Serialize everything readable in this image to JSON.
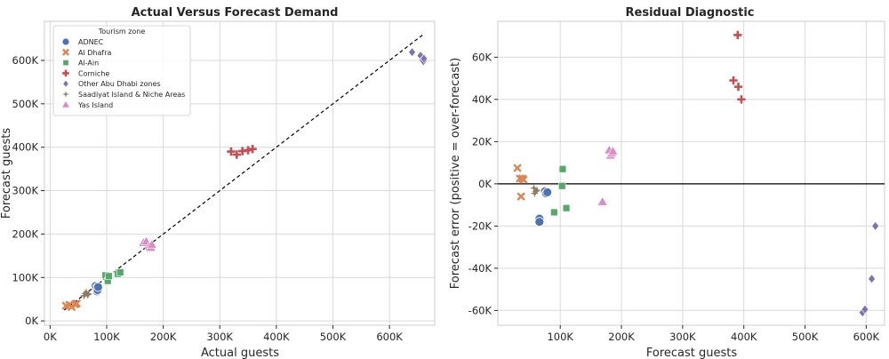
{
  "chart_data": [
    {
      "type": "scatter",
      "title": "Actual Versus Forecast Demand",
      "xlabel": "Actual guests",
      "ylabel": "Forecast guests",
      "xlim": [
        -10000,
        680000
      ],
      "ylim": [
        -10000,
        690000
      ],
      "xticks": [
        0,
        100000,
        200000,
        300000,
        400000,
        500000,
        600000
      ],
      "xtick_labels": [
        "0K",
        "100K",
        "200K",
        "300K",
        "400K",
        "500K",
        "600K"
      ],
      "yticks": [
        0,
        100000,
        200000,
        300000,
        400000,
        500000,
        600000
      ],
      "ytick_labels": [
        "0K",
        "100K",
        "200K",
        "300K",
        "400K",
        "500K",
        "600K"
      ],
      "grid": true,
      "reference_line": {
        "style": "dashed",
        "from": [
          25000,
          25000
        ],
        "to": [
          660000,
          660000
        ]
      },
      "legend": {
        "title": "Tourism zone",
        "placement": "top-left",
        "entries": [
          "ADNEC",
          "Al Dhafra",
          "Al-Ain",
          "Corniche",
          "Other Abu Dhabi zones",
          "Saadiyat Island & Niche Areas",
          "Yas Island"
        ]
      },
      "series": [
        {
          "name": "ADNEC",
          "color": "#4c72b0",
          "marker": "circle",
          "points": [
            [
              80000,
              80000
            ],
            [
              82000,
              76000
            ],
            [
              83000,
              68000
            ],
            [
              84000,
              71000
            ],
            [
              85000,
              78000
            ]
          ]
        },
        {
          "name": "Al Dhafra",
          "color": "#dd8452",
          "marker": "x",
          "points": [
            [
              28000,
              35000
            ],
            [
              34000,
              37000
            ],
            [
              38000,
              32000
            ],
            [
              44000,
              38000
            ],
            [
              47000,
              40000
            ]
          ]
        },
        {
          "name": "Al-Ain",
          "color": "#55a868",
          "marker": "square",
          "points": [
            [
              98000,
              105000
            ],
            [
              102000,
              92000
            ],
            [
              104000,
              103000
            ],
            [
              120000,
              108000
            ],
            [
              124000,
              112000
            ]
          ]
        },
        {
          "name": "Corniche",
          "color": "#c44e52",
          "marker": "plus",
          "points": [
            [
              320000,
              390000
            ],
            [
              330000,
              383000
            ],
            [
              340000,
              391000
            ],
            [
              350000,
              393000
            ],
            [
              358000,
              396000
            ]
          ]
        },
        {
          "name": "Other Abu Dhabi zones",
          "color": "#8172b3",
          "marker": "diamond",
          "points": [
            [
              640000,
              619000
            ],
            [
              655000,
              611000
            ],
            [
              658000,
              600000
            ],
            [
              660000,
              598000
            ],
            [
              661000,
              604000
            ]
          ]
        },
        {
          "name": "Saadiyat Island & Niche Areas",
          "color": "#937860",
          "marker": "star",
          "points": [
            [
              60000,
              58000
            ],
            [
              62000,
              63000
            ],
            [
              64000,
              66000
            ],
            [
              66000,
              60000
            ],
            [
              68000,
              62000
            ]
          ]
        },
        {
          "name": "Yas Island",
          "color": "#da8bc3",
          "marker": "triangle",
          "points": [
            [
              165000,
              180000
            ],
            [
              170000,
              183000
            ],
            [
              175000,
              172000
            ],
            [
              178000,
              169000
            ],
            [
              180000,
              176000
            ]
          ]
        }
      ]
    },
    {
      "type": "scatter",
      "title": "Residual Diagnostic",
      "xlabel": "Forecast guests",
      "ylabel": "Forecast error (positive = over-forecast)",
      "xlim": [
        -2000,
        630000
      ],
      "ylim": [
        -67000,
        77000
      ],
      "xticks": [
        100000,
        200000,
        300000,
        400000,
        500000,
        600000
      ],
      "xtick_labels": [
        "100K",
        "200K",
        "300K",
        "400K",
        "500K",
        "600K"
      ],
      "yticks": [
        -60000,
        -40000,
        -20000,
        0,
        20000,
        40000,
        60000
      ],
      "ytick_labels": [
        "-60K",
        "-40K",
        "-20K",
        "0K",
        "20K",
        "40K",
        "60K"
      ],
      "grid": true,
      "reference_line": {
        "style": "solid",
        "y": 0
      },
      "series": [
        {
          "name": "ADNEC",
          "color": "#4c72b0",
          "marker": "circle",
          "points": [
            [
              66000,
              -16500
            ],
            [
              66000,
              -18000
            ],
            [
              75000,
              -3500
            ],
            [
              77000,
              -4500
            ],
            [
              79000,
              -4000
            ]
          ]
        },
        {
          "name": "Al Dhafra",
          "color": "#dd8452",
          "marker": "x",
          "points": [
            [
              30000,
              7500
            ],
            [
              34000,
              2500
            ],
            [
              36000,
              -6000
            ],
            [
              38000,
              2500
            ],
            [
              40000,
              2000
            ]
          ]
        },
        {
          "name": "Al-Ain",
          "color": "#55a868",
          "marker": "square",
          "points": [
            [
              90000,
              -13500
            ],
            [
              103000,
              -1000
            ],
            [
              104000,
              7000
            ],
            [
              110000,
              -11500
            ]
          ]
        },
        {
          "name": "Corniche",
          "color": "#c44e52",
          "marker": "plus",
          "points": [
            [
              383000,
              49000
            ],
            [
              390000,
              70500
            ],
            [
              391000,
              46000
            ],
            [
              396000,
              40000
            ]
          ]
        },
        {
          "name": "Other Abu Dhabi zones",
          "color": "#8172b3",
          "marker": "diamond",
          "points": [
            [
              594000,
              -61000
            ],
            [
              598000,
              -59500
            ],
            [
              609000,
              -45000
            ],
            [
              615000,
              -20000
            ]
          ]
        },
        {
          "name": "Saadiyat Island & Niche Areas",
          "color": "#937860",
          "marker": "star",
          "points": [
            [
              57000,
              -2000
            ],
            [
              58000,
              -4500
            ],
            [
              60000,
              -3500
            ],
            [
              62000,
              -3000
            ]
          ]
        },
        {
          "name": "Yas Island",
          "color": "#da8bc3",
          "marker": "triangle",
          "points": [
            [
              169000,
              -8500
            ],
            [
              180000,
              16000
            ],
            [
              182000,
              13500
            ],
            [
              184000,
              14500
            ],
            [
              186000,
              15500
            ]
          ]
        }
      ]
    }
  ]
}
